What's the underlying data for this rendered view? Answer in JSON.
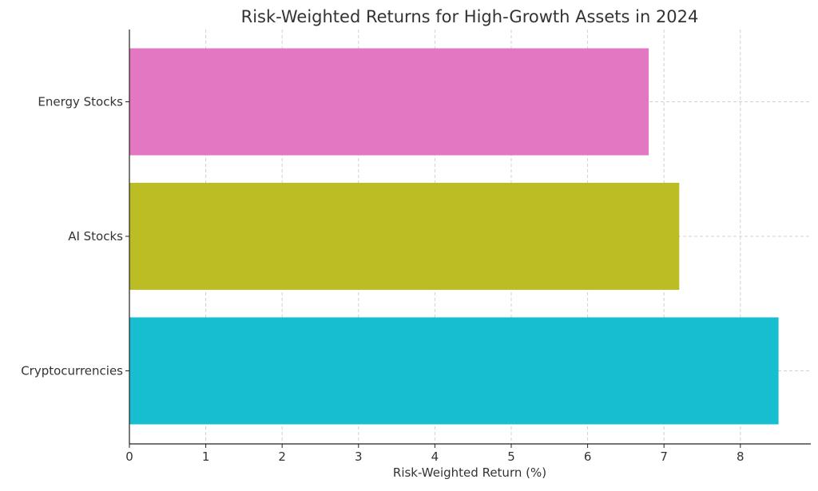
{
  "chart_data": {
    "type": "bar",
    "orientation": "horizontal",
    "title": "Risk-Weighted Returns for High-Growth Assets in 2024",
    "xlabel": "Risk-Weighted Return (%)",
    "ylabel": "",
    "categories": [
      "Cryptocurrencies",
      "AI Stocks",
      "Energy Stocks"
    ],
    "values": [
      8.5,
      7.2,
      6.8
    ],
    "colors": [
      "#17becf",
      "#bcbd22",
      "#e377c2"
    ],
    "xlim": [
      0,
      9
    ],
    "xticks": [
      0,
      1,
      2,
      3,
      4,
      5,
      6,
      7,
      8
    ],
    "grid": true
  }
}
